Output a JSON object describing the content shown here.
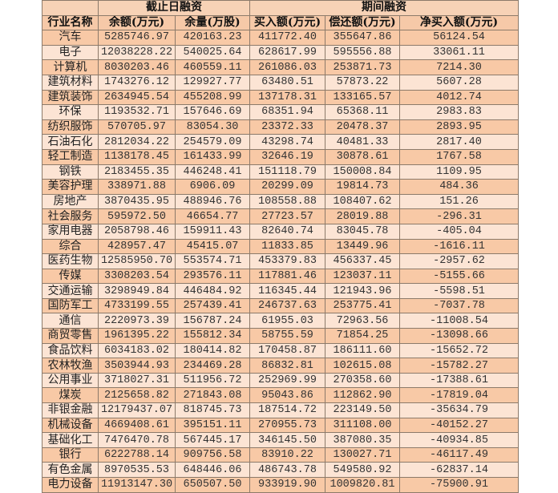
{
  "header": {
    "group_end_date": "截止日融资",
    "group_period": "期间融资",
    "columns": [
      "行业名称",
      "余额(万元)",
      "余量(万股)",
      "买入额(万元)",
      "偿还额(万元)",
      "净买入额(万元)"
    ]
  },
  "colors": {
    "row_dark": "#f8c9a6",
    "row_light": "#fce4d4",
    "header": "#f6c9a8"
  },
  "rows": [
    [
      "汽车",
      "5285746.97",
      "420163.23",
      "411772.40",
      "355647.86",
      "56124.54"
    ],
    [
      "电子",
      "12038228.22",
      "540025.64",
      "628617.99",
      "595556.88",
      "33061.11"
    ],
    [
      "计算机",
      "8030203.46",
      "460559.11",
      "261086.03",
      "253871.73",
      "7214.30"
    ],
    [
      "建筑材料",
      "1743276.12",
      "129927.77",
      "63480.51",
      "57873.22",
      "5607.28"
    ],
    [
      "建筑装饰",
      "2634945.54",
      "455208.99",
      "137178.31",
      "133165.57",
      "4012.74"
    ],
    [
      "环保",
      "1193532.71",
      "157646.69",
      "68351.94",
      "65368.11",
      "2983.83"
    ],
    [
      "纺织服饰",
      "570705.97",
      "83054.30",
      "23372.33",
      "20478.37",
      "2893.95"
    ],
    [
      "石油石化",
      "2812034.22",
      "254579.09",
      "43298.74",
      "40481.33",
      "2817.40"
    ],
    [
      "轻工制造",
      "1138178.45",
      "161433.99",
      "32646.19",
      "30878.61",
      "1767.58"
    ],
    [
      "钢铁",
      "2183455.35",
      "446248.41",
      "151118.79",
      "150008.84",
      "1109.95"
    ],
    [
      "美容护理",
      "338971.88",
      "6906.09",
      "20299.09",
      "19814.73",
      "484.36"
    ],
    [
      "房地产",
      "3870435.95",
      "488946.76",
      "108558.88",
      "108407.62",
      "151.26"
    ],
    [
      "社会服务",
      "595972.50",
      "46654.77",
      "27723.57",
      "28019.88",
      "-296.31"
    ],
    [
      "家用电器",
      "2058798.46",
      "159911.43",
      "82640.74",
      "83045.78",
      "-405.04"
    ],
    [
      "综合",
      "428957.47",
      "45415.07",
      "11833.85",
      "13449.96",
      "-1616.11"
    ],
    [
      "医药生物",
      "12585950.70",
      "553574.71",
      "453379.83",
      "456337.45",
      "-2957.62"
    ],
    [
      "传媒",
      "3308203.54",
      "293576.11",
      "117881.46",
      "123037.11",
      "-5155.66"
    ],
    [
      "交通运输",
      "3298949.84",
      "446484.92",
      "116345.44",
      "121943.96",
      "-5598.51"
    ],
    [
      "国防军工",
      "4733199.55",
      "257439.41",
      "246737.63",
      "253775.41",
      "-7037.78"
    ],
    [
      "通信",
      "2220973.39",
      "156787.24",
      "61955.03",
      "72963.56",
      "-11008.54"
    ],
    [
      "商贸零售",
      "1961395.22",
      "155812.34",
      "58755.59",
      "71854.25",
      "-13098.66"
    ],
    [
      "食品饮料",
      "6034183.02",
      "180414.82",
      "170458.87",
      "186111.60",
      "-15652.72"
    ],
    [
      "农林牧渔",
      "3503944.93",
      "234469.28",
      "86832.81",
      "102615.08",
      "-15782.27"
    ],
    [
      "公用事业",
      "3718027.31",
      "511956.72",
      "252969.99",
      "270358.60",
      "-17388.61"
    ],
    [
      "煤炭",
      "2125658.82",
      "271843.08",
      "95043.86",
      "112862.90",
      "-17819.04"
    ],
    [
      "非银金融",
      "12179437.07",
      "818745.73",
      "187514.72",
      "223149.50",
      "-35634.79"
    ],
    [
      "机械设备",
      "4669408.61",
      "395151.11",
      "270955.73",
      "311108.00",
      "-40152.27"
    ],
    [
      "基础化工",
      "7476470.78",
      "567445.17",
      "346145.50",
      "387080.35",
      "-40934.85"
    ],
    [
      "银行",
      "6222788.14",
      "909756.58",
      "83910.22",
      "130027.71",
      "-46117.49"
    ],
    [
      "有色金属",
      "8970535.53",
      "648446.06",
      "486743.78",
      "549580.92",
      "-62837.14"
    ],
    [
      "电力设备",
      "11913147.30",
      "650507.50",
      "933919.90",
      "1009820.81",
      "-75900.91"
    ]
  ]
}
